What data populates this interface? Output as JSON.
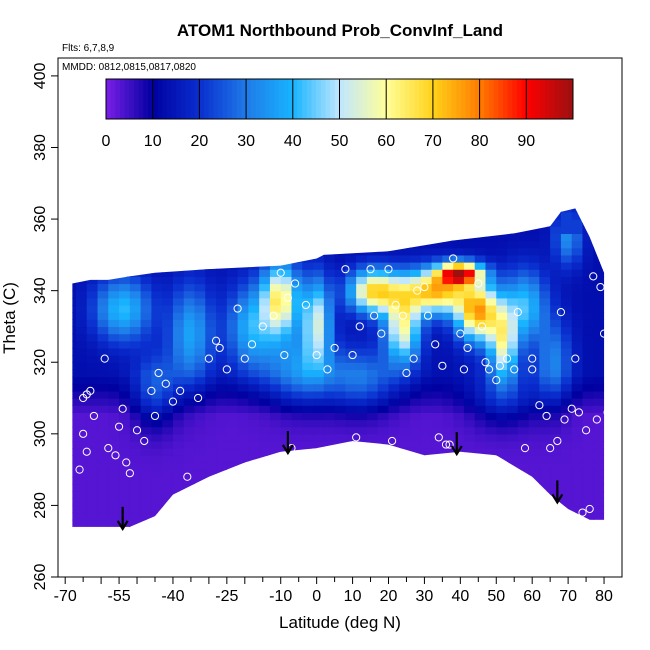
{
  "chart_data": {
    "type": "heatmap",
    "title": "ATOM1 Northbound Prob_ConvInf_Land",
    "flights_note": "Flts: 6,7,8,9",
    "dates_note": "MMDD: 0812,0815,0817,0820",
    "xlabel": "Latitude (deg N)",
    "ylabel": "Theta (C)",
    "xlim": [
      -72,
      85
    ],
    "ylim": [
      260,
      405
    ],
    "x_ticks_major": [
      -70,
      -55,
      -40,
      -25,
      -10,
      0,
      10,
      20,
      30,
      40,
      50,
      60,
      70,
      80
    ],
    "x_ticks_labels": [
      "-70",
      "-55",
      "-40",
      "-25",
      "-10",
      "0",
      "10",
      "20",
      "30",
      "40",
      "50",
      "60",
      "70",
      "80"
    ],
    "y_ticks": [
      260,
      280,
      300,
      320,
      340,
      360,
      380,
      400
    ],
    "y_tick_labels": [
      "260",
      "280",
      "300",
      "320",
      "340",
      "360",
      "380",
      "400"
    ],
    "colorbar": {
      "range": [
        0,
        100
      ],
      "ticks": [
        0,
        10,
        20,
        30,
        40,
        50,
        60,
        70,
        80,
        90
      ],
      "tick_labels": [
        "0",
        "10",
        "20",
        "30",
        "40",
        "50",
        "60",
        "70",
        "80",
        "90"
      ],
      "colors": [
        "#7a1ee8",
        "#0000a0",
        "#0a2ecf",
        "#1f7ae8",
        "#18b4ff",
        "#bfe6ff",
        "#ffff9a",
        "#ffd21a",
        "#ff7c00",
        "#ff0000",
        "#9b1010"
      ]
    },
    "boundary": {
      "top": [
        [
          -68,
          342
        ],
        [
          -63,
          343
        ],
        [
          -58,
          343
        ],
        [
          -52,
          344
        ],
        [
          -45,
          345
        ],
        [
          -30,
          346
        ],
        [
          -10,
          347
        ],
        [
          0,
          349
        ],
        [
          2,
          350
        ],
        [
          20,
          351
        ],
        [
          38,
          354
        ],
        [
          55,
          356
        ],
        [
          65,
          358
        ],
        [
          68,
          362
        ],
        [
          72,
          363
        ],
        [
          76,
          355
        ],
        [
          80,
          345
        ]
      ],
      "bottom": [
        [
          -68,
          274
        ],
        [
          -58,
          274
        ],
        [
          -52,
          274
        ],
        [
          -45,
          277
        ],
        [
          -40,
          283
        ],
        [
          -30,
          288
        ],
        [
          -20,
          292
        ],
        [
          -10,
          295
        ],
        [
          0,
          296
        ],
        [
          10,
          298
        ],
        [
          20,
          297
        ],
        [
          30,
          294
        ],
        [
          40,
          295
        ],
        [
          50,
          294
        ],
        [
          60,
          288
        ],
        [
          65,
          283
        ],
        [
          70,
          279
        ],
        [
          76,
          276
        ],
        [
          80,
          276
        ]
      ]
    },
    "arrows_latitude": [
      -54,
      -8,
      39,
      67
    ],
    "observations": [
      [
        -65,
        310
      ],
      [
        -64,
        311
      ],
      [
        -63,
        312
      ],
      [
        -65,
        300
      ],
      [
        -64,
        295
      ],
      [
        -66,
        290
      ],
      [
        -62,
        305
      ],
      [
        -59,
        321
      ],
      [
        -58,
        296
      ],
      [
        -56,
        294
      ],
      [
        -55,
        302
      ],
      [
        -54,
        307
      ],
      [
        -53,
        292
      ],
      [
        -52,
        289
      ],
      [
        -50,
        301
      ],
      [
        -48,
        298
      ],
      [
        -46,
        312
      ],
      [
        -45,
        305
      ],
      [
        -44,
        317
      ],
      [
        -42,
        314
      ],
      [
        -40,
        309
      ],
      [
        -38,
        312
      ],
      [
        -36,
        288
      ],
      [
        -33,
        310
      ],
      [
        -30,
        321
      ],
      [
        -28,
        326
      ],
      [
        -27,
        324
      ],
      [
        -25,
        318
      ],
      [
        -22,
        335
      ],
      [
        -20,
        321
      ],
      [
        -18,
        325
      ],
      [
        -15,
        330
      ],
      [
        -12,
        333
      ],
      [
        -10,
        345
      ],
      [
        -9,
        322
      ],
      [
        -8,
        338
      ],
      [
        -7,
        296
      ],
      [
        -6,
        342
      ],
      [
        -3,
        336
      ],
      [
        0,
        322
      ],
      [
        3,
        318
      ],
      [
        5,
        324
      ],
      [
        8,
        346
      ],
      [
        10,
        322
      ],
      [
        11,
        299
      ],
      [
        12,
        330
      ],
      [
        15,
        346
      ],
      [
        16,
        333
      ],
      [
        18,
        328
      ],
      [
        20,
        346
      ],
      [
        21,
        298
      ],
      [
        22,
        336
      ],
      [
        24,
        333
      ],
      [
        25,
        317
      ],
      [
        27,
        321
      ],
      [
        28,
        340
      ],
      [
        30,
        341
      ],
      [
        31,
        333
      ],
      [
        33,
        325
      ],
      [
        34,
        299
      ],
      [
        35,
        319
      ],
      [
        36,
        297
      ],
      [
        38,
        349
      ],
      [
        40,
        328
      ],
      [
        41,
        318
      ],
      [
        42,
        324
      ],
      [
        45,
        342
      ],
      [
        46,
        330
      ],
      [
        47,
        320
      ],
      [
        48,
        318
      ],
      [
        50,
        315
      ],
      [
        51,
        319
      ],
      [
        53,
        321
      ],
      [
        55,
        318
      ],
      [
        58,
        296
      ],
      [
        60,
        318
      ],
      [
        62,
        308
      ],
      [
        64,
        305
      ],
      [
        65,
        296
      ],
      [
        67,
        298
      ],
      [
        68,
        334
      ],
      [
        69,
        304
      ],
      [
        71,
        307
      ],
      [
        72,
        321
      ],
      [
        73,
        306
      ],
      [
        74,
        278
      ],
      [
        75,
        301
      ],
      [
        76,
        279
      ],
      [
        78,
        304
      ],
      [
        79,
        341
      ],
      [
        80,
        328
      ],
      [
        81,
        306
      ],
      [
        82,
        298
      ],
      [
        83,
        277
      ],
      [
        77,
        344
      ],
      [
        56,
        334
      ],
      [
        60,
        321
      ],
      [
        37,
        297
      ]
    ]
  }
}
